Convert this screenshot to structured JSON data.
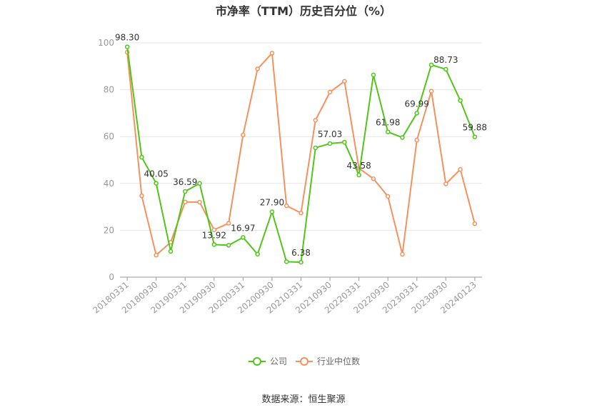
{
  "chart_data": {
    "type": "line",
    "title": "市净率（TTM）历史百分位（%）",
    "xlabel": "",
    "ylabel": "",
    "ylim": [
      0,
      100
    ],
    "y_ticks": [
      0,
      20,
      40,
      60,
      80,
      100
    ],
    "x": [
      "20180331",
      "20180630",
      "20180930",
      "20181231",
      "20190331",
      "20190630",
      "20190930",
      "20191231",
      "20200331",
      "20200630",
      "20200930",
      "20201231",
      "20210331",
      "20210630",
      "20210930",
      "20211231",
      "20220331",
      "20220630",
      "20220930",
      "20221231",
      "20230331",
      "20230630",
      "20230930",
      "20231231",
      "20240123"
    ],
    "x_tick_labels": [
      "20180331",
      "20180930",
      "20190331",
      "20190930",
      "20200331",
      "20200930",
      "20210331",
      "20210930",
      "20220331",
      "20220930",
      "20230331",
      "20230930",
      "20240123"
    ],
    "series": [
      {
        "name": "公司",
        "color": "#52c41a",
        "values": [
          98.3,
          51.2,
          40.05,
          11.0,
          36.59,
          40.0,
          13.92,
          13.6,
          16.97,
          9.8,
          27.9,
          6.6,
          6.38,
          55.2,
          57.03,
          57.6,
          43.58,
          86.3,
          61.98,
          59.6,
          69.99,
          90.6,
          88.73,
          75.4,
          59.88
        ],
        "labels": {
          "0": "98.30",
          "2": "40.05",
          "4": "36.59",
          "6": "13.92",
          "8": "16.97",
          "10": "27.90",
          "12": "6.38",
          "14": "57.03",
          "16": "43.58",
          "18": "61.98",
          "20": "69.99",
          "22": "88.73",
          "24": "59.88"
        }
      },
      {
        "name": "行业中位数",
        "color": "#f4925f",
        "values": [
          96.0,
          34.7,
          9.4,
          14.9,
          32.1,
          32.0,
          20.2,
          23.0,
          60.7,
          88.9,
          95.6,
          30.5,
          27.4,
          67.0,
          79.0,
          83.6,
          46.5,
          42.0,
          34.5,
          9.8,
          58.5,
          79.4,
          39.8,
          46.0,
          22.8
        ]
      }
    ],
    "legend_position": "bottom-center",
    "grid": true
  },
  "legend": {
    "company_label": "公司",
    "industry_label": "行业中位数"
  },
  "source": {
    "text": "数据来源：恒生聚源"
  }
}
